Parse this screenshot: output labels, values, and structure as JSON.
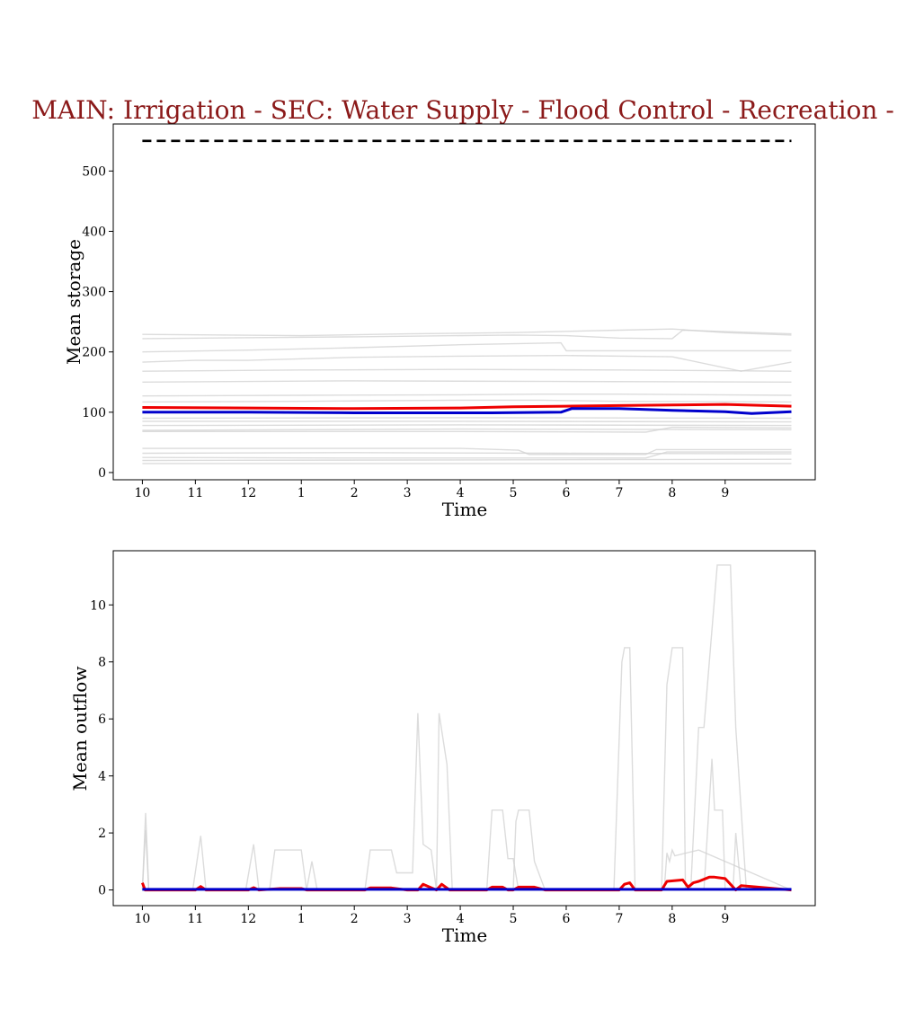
{
  "title": "MAIN: Irrigation - SEC: Water Supply - Flood Control - Recreation -",
  "colors": {
    "title": "#8b1a1a",
    "gray": "#d0d0d0",
    "red": "#ee0000",
    "blue": "#0000cc",
    "capacity": "#000000"
  },
  "chart_data": [
    {
      "type": "line",
      "xlabel": "Time",
      "ylabel": "Mean storage",
      "x_tick_labels": [
        "10",
        "11",
        "12",
        "1",
        "2",
        "3",
        "4",
        "5",
        "6",
        "7",
        "8",
        "9"
      ],
      "x_tick_positions": [
        0,
        1,
        2,
        3,
        4,
        5,
        6,
        7,
        8,
        9,
        10,
        11
      ],
      "y_ticks": [
        0,
        100,
        200,
        300,
        400,
        500
      ],
      "xlim": [
        -0.55,
        12.7
      ],
      "ylim": [
        -12,
        578
      ],
      "grid": false,
      "capacity": {
        "style": "dashed",
        "x": [
          0,
          12.25
        ],
        "y": [
          550,
          550
        ]
      },
      "gray_series": [
        {
          "x": [
            0,
            3,
            5,
            7,
            9,
            10,
            11,
            12.25
          ],
          "y": [
            229,
            227,
            230,
            232,
            236,
            238,
            232,
            228
          ]
        },
        {
          "x": [
            0,
            4,
            7,
            8,
            9,
            10,
            10.2,
            12.25
          ],
          "y": [
            222,
            225,
            228,
            227,
            223,
            222,
            236,
            230
          ]
        },
        {
          "x": [
            0,
            2,
            4,
            6,
            7.9,
            8,
            12.25
          ],
          "y": [
            200,
            203,
            207,
            212,
            215,
            202,
            202
          ]
        },
        {
          "x": [
            0,
            1,
            2,
            4,
            6,
            8,
            10,
            11.3,
            12.25
          ],
          "y": [
            183,
            186,
            186,
            191,
            193,
            194,
            192,
            168,
            183
          ]
        },
        {
          "x": [
            0,
            3,
            6,
            9,
            12.25
          ],
          "y": [
            168,
            170,
            171,
            170,
            168
          ]
        },
        {
          "x": [
            0,
            4,
            8,
            12.25
          ],
          "y": [
            150,
            152,
            151,
            150
          ]
        },
        {
          "x": [
            0,
            3,
            6,
            7.5,
            9,
            12.25
          ],
          "y": [
            127,
            128,
            129,
            130,
            130,
            128
          ]
        },
        {
          "x": [
            0,
            3,
            6,
            7.5,
            9,
            12.25
          ],
          "y": [
            117,
            118,
            120,
            120,
            118,
            117
          ]
        },
        {
          "x": [
            0,
            6,
            12.25
          ],
          "y": [
            90,
            91,
            90
          ]
        },
        {
          "x": [
            0,
            6,
            12.25
          ],
          "y": [
            85,
            85,
            84
          ]
        },
        {
          "x": [
            0,
            6,
            12.25
          ],
          "y": [
            78,
            79,
            78
          ]
        },
        {
          "x": [
            0,
            6,
            12.25
          ],
          "y": [
            70,
            72,
            71
          ]
        },
        {
          "x": [
            0,
            6,
            9.5,
            10,
            12.25
          ],
          "y": [
            68,
            68,
            67,
            75,
            74
          ]
        },
        {
          "x": [
            0,
            6,
            7.1,
            7.3,
            9.5,
            9.7,
            12.25
          ],
          "y": [
            40,
            40,
            37,
            30,
            30,
            38,
            38
          ]
        },
        {
          "x": [
            0,
            4,
            8,
            12.25
          ],
          "y": [
            32,
            33,
            32,
            31
          ]
        },
        {
          "x": [
            0,
            4,
            9.5,
            9.9,
            12.25
          ],
          "y": [
            25,
            24,
            24,
            34,
            34
          ]
        },
        {
          "x": [
            0,
            6,
            12.25
          ],
          "y": [
            20,
            21,
            22
          ]
        },
        {
          "x": [
            0,
            6,
            12.25
          ],
          "y": [
            15,
            15,
            15
          ]
        }
      ],
      "series": [
        {
          "color": "red",
          "x": [
            0,
            2,
            4,
            6,
            7,
            8,
            9,
            10,
            11,
            12.25
          ],
          "y": [
            108,
            107,
            106,
            107,
            109,
            110,
            111,
            112,
            113,
            110
          ]
        },
        {
          "color": "blue",
          "x": [
            0,
            2,
            4,
            6,
            6.6,
            7.9,
            8.1,
            9,
            10,
            11,
            11.5,
            12.25
          ],
          "y": [
            100,
            100,
            99,
            99,
            99,
            100,
            106,
            106,
            103,
            101,
            98,
            101
          ]
        }
      ]
    },
    {
      "type": "line",
      "xlabel": "Time",
      "ylabel": "Mean outflow",
      "x_tick_labels": [
        "10",
        "11",
        "12",
        "1",
        "2",
        "3",
        "4",
        "5",
        "6",
        "7",
        "8",
        "9"
      ],
      "x_tick_positions": [
        0,
        1,
        2,
        3,
        4,
        5,
        6,
        7,
        8,
        9,
        10,
        11
      ],
      "y_ticks": [
        0,
        2,
        4,
        6,
        8,
        10
      ],
      "xlim": [
        -0.55,
        12.7
      ],
      "ylim": [
        -0.55,
        11.9
      ],
      "grid": false,
      "gray_series": [
        {
          "x": [
            0,
            0.06,
            0.12,
            12.25
          ],
          "y": [
            0,
            2.7,
            0,
            0
          ]
        },
        {
          "x": [
            0,
            0.06,
            0.12,
            12.25
          ],
          "y": [
            0,
            2.1,
            0,
            0
          ]
        },
        {
          "x": [
            0.95,
            1.1,
            1.2,
            12.25
          ],
          "y": [
            0,
            1.9,
            0,
            0
          ]
        },
        {
          "x": [
            1.95,
            2.1,
            2.2,
            12.25
          ],
          "y": [
            0,
            1.6,
            0,
            0
          ]
        },
        {
          "x": [
            0,
            2.4,
            2.5,
            3.0,
            3.1,
            3.1,
            3.2,
            3.3,
            12.25
          ],
          "y": [
            0,
            0,
            1.4,
            1.4,
            0,
            0,
            1.0,
            0,
            0
          ]
        },
        {
          "x": [
            0,
            4.2,
            4.3,
            4.7,
            4.8,
            5.1,
            5.2,
            5.3,
            5.45,
            5.55,
            5.6,
            5.75,
            5.85,
            12.25
          ],
          "y": [
            0,
            0,
            1.4,
            1.4,
            0.6,
            0.6,
            6.2,
            1.6,
            1.4,
            0,
            6.2,
            4.4,
            0,
            0
          ]
        },
        {
          "x": [
            0,
            6.5,
            6.6,
            6.8,
            6.9,
            7.0,
            7.1,
            12.25
          ],
          "y": [
            0,
            0,
            2.8,
            2.8,
            1.1,
            1.1,
            0,
            0
          ]
        },
        {
          "x": [
            0,
            7.0,
            7.05,
            7.1,
            7.3,
            7.4,
            7.6,
            12.25
          ],
          "y": [
            0,
            0,
            2.4,
            2.8,
            2.8,
            1.0,
            0,
            0
          ]
        },
        {
          "x": [
            0,
            8.9,
            9.05,
            9.1,
            9.2,
            9.3,
            12.25
          ],
          "y": [
            0,
            0,
            8.0,
            8.5,
            8.5,
            0,
            0
          ]
        },
        {
          "x": [
            0,
            9.8,
            9.9,
            10.0,
            10.2,
            10.25,
            10.4,
            12.25
          ],
          "y": [
            0,
            0,
            7.2,
            8.5,
            8.5,
            0,
            0,
            0
          ]
        },
        {
          "x": [
            0,
            9.85,
            9.9,
            9.95,
            10.0,
            10.05,
            10.5,
            12.25
          ],
          "y": [
            0,
            0,
            1.3,
            1.0,
            1.4,
            1.2,
            1.4,
            0
          ]
        },
        {
          "x": [
            0,
            10.35,
            10.5,
            10.6,
            10.85,
            11.1,
            11.2,
            11.4,
            12.25
          ],
          "y": [
            0,
            0,
            5.7,
            5.7,
            11.4,
            11.4,
            5.7,
            0,
            0
          ]
        },
        {
          "x": [
            0,
            10.6,
            10.75,
            10.8,
            10.95,
            11.0,
            12.25
          ],
          "y": [
            0,
            0,
            4.6,
            2.8,
            2.8,
            0,
            0
          ]
        },
        {
          "x": [
            0,
            11.15,
            11.2,
            11.3,
            12.25
          ],
          "y": [
            0,
            0,
            2.0,
            0,
            0
          ]
        }
      ],
      "series": [
        {
          "color": "red",
          "x": [
            0,
            0.05,
            0.1,
            1.0,
            1.1,
            1.2,
            2.0,
            2.1,
            2.2,
            2.6,
            3.0,
            3.1,
            4.2,
            4.3,
            4.7,
            5.0,
            5.2,
            5.3,
            5.55,
            5.65,
            5.8,
            6.5,
            6.6,
            6.8,
            6.9,
            7.0,
            7.1,
            7.3,
            7.4,
            7.6,
            9.0,
            9.1,
            9.2,
            9.3,
            9.8,
            9.9,
            10.2,
            10.3,
            10.4,
            10.5,
            10.7,
            10.8,
            11.0,
            11.1,
            11.15,
            11.2,
            11.3,
            12.25
          ],
          "y": [
            0.25,
            0,
            0,
            0,
            0.12,
            0,
            0,
            0.08,
            0,
            0.05,
            0.05,
            0,
            0,
            0.07,
            0.07,
            0,
            0,
            0.2,
            0,
            0.2,
            0,
            0,
            0.1,
            0.1,
            0,
            0,
            0.1,
            0.1,
            0.1,
            0,
            0,
            0.2,
            0.25,
            0,
            0,
            0.3,
            0.35,
            0.1,
            0.25,
            0.3,
            0.45,
            0.45,
            0.4,
            0.2,
            0.1,
            0,
            0.15,
            0
          ]
        },
        {
          "color": "blue",
          "x": [
            0,
            12.25
          ],
          "y": [
            0.02,
            0.02
          ]
        }
      ]
    }
  ]
}
